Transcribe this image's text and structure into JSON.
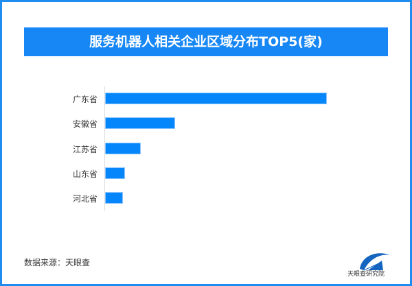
{
  "chart_data": {
    "type": "bar",
    "orientation": "horizontal",
    "title": "服务机器人相关企业区域分布TOP5(家)",
    "categories": [
      "广东省",
      "安徽省",
      "江苏省",
      "山东省",
      "河北省"
    ],
    "values": [
      100,
      31.6,
      16.1,
      9.0,
      8.0
    ],
    "xlabel": "",
    "ylabel": "",
    "xlim": [
      0,
      100
    ],
    "grid": false,
    "colors": {
      "bar": "#0587fb",
      "title_bg": "#1787f5",
      "frame": "#1f8cf0"
    }
  },
  "footer": {
    "source": "数据来源：天眼查",
    "logo_text": "天眼查研究院"
  }
}
